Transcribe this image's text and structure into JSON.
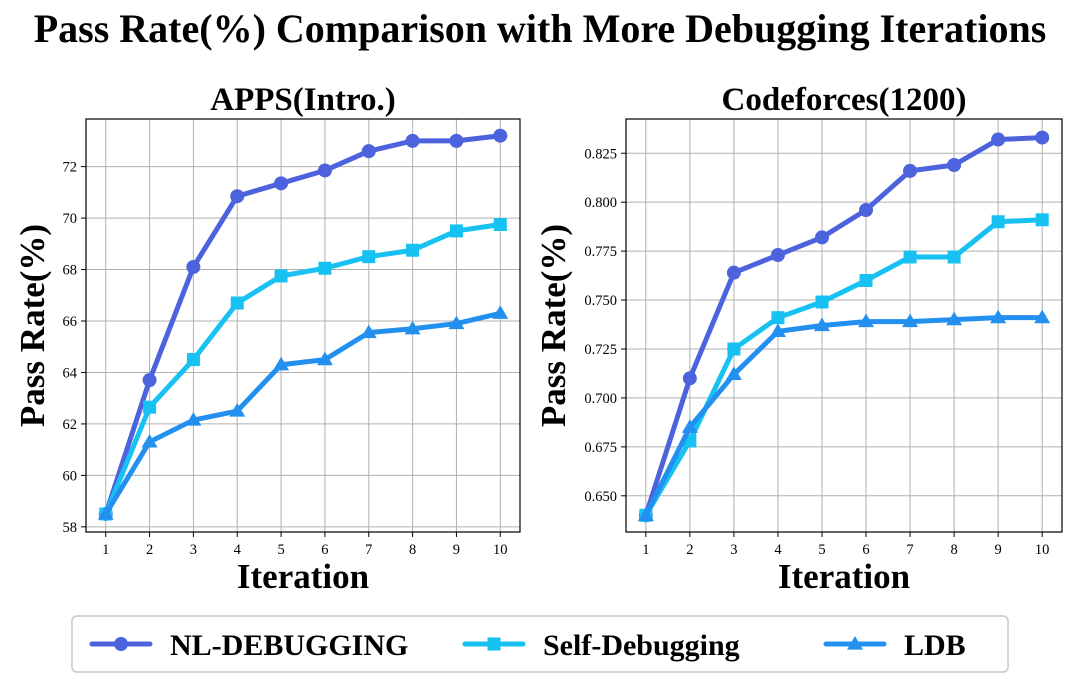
{
  "figure": {
    "title": "Pass Rate(%) Comparison with More Debugging Iterations"
  },
  "legend": {
    "placement": "bottom-center",
    "entries": [
      {
        "label": "NL-DEBUGGING",
        "color": "#4c63dd",
        "marker": "circle"
      },
      {
        "label": "Self-Debugging",
        "color": "#17c1f2",
        "marker": "square"
      },
      {
        "label": "LDB",
        "color": "#2390ef",
        "marker": "triangle"
      }
    ]
  },
  "chart_data": [
    {
      "type": "line",
      "title": "APPS(Intro.)",
      "xlabel": "Iteration",
      "ylabel": "Pass Rate(%)",
      "x": [
        1,
        2,
        3,
        4,
        5,
        6,
        7,
        8,
        9,
        10
      ],
      "xticks": [
        "1",
        "2",
        "3",
        "4",
        "5",
        "6",
        "7",
        "8",
        "9",
        "10"
      ],
      "yticks": [
        58,
        60,
        62,
        64,
        66,
        68,
        70,
        72
      ],
      "ytick_labels": [
        "58",
        "60",
        "62",
        "64",
        "66",
        "68",
        "70",
        "72"
      ],
      "xlim": [
        0.55,
        10.45
      ],
      "ylim": [
        57.8,
        73.85
      ],
      "grid": true,
      "series": [
        {
          "name": "NL-DEBUGGING",
          "values": [
            58.5,
            63.7,
            68.1,
            70.85,
            71.35,
            71.85,
            72.6,
            73.0,
            73.0,
            73.2
          ]
        },
        {
          "name": "Self-Debugging",
          "values": [
            58.5,
            62.65,
            64.5,
            66.7,
            67.75,
            68.05,
            68.5,
            68.75,
            69.5,
            69.75
          ]
        },
        {
          "name": "LDB",
          "values": [
            58.5,
            61.3,
            62.15,
            62.5,
            64.3,
            64.5,
            65.55,
            65.7,
            65.9,
            66.3
          ]
        }
      ]
    },
    {
      "type": "line",
      "title": "Codeforces(1200)",
      "xlabel": "Iteration",
      "ylabel": "Pass Rate(%)",
      "x": [
        1,
        2,
        3,
        4,
        5,
        6,
        7,
        8,
        9,
        10
      ],
      "xticks": [
        "1",
        "2",
        "3",
        "4",
        "5",
        "6",
        "7",
        "8",
        "9",
        "10"
      ],
      "yticks": [
        0.65,
        0.675,
        0.7,
        0.725,
        0.75,
        0.775,
        0.8,
        0.825
      ],
      "ytick_labels": [
        "0.650",
        "0.675",
        "0.700",
        "0.725",
        "0.750",
        "0.775",
        "0.800",
        "0.825"
      ],
      "xlim": [
        0.55,
        10.45
      ],
      "ylim": [
        0.6315,
        0.8425
      ],
      "grid": true,
      "series": [
        {
          "name": "NL-DEBUGGING",
          "values": [
            0.64,
            0.71,
            0.764,
            0.773,
            0.782,
            0.796,
            0.816,
            0.819,
            0.832,
            0.833
          ]
        },
        {
          "name": "Self-Debugging",
          "values": [
            0.64,
            0.678,
            0.725,
            0.741,
            0.749,
            0.76,
            0.772,
            0.772,
            0.79,
            0.791
          ]
        },
        {
          "name": "LDB",
          "values": [
            0.64,
            0.685,
            0.712,
            0.734,
            0.737,
            0.739,
            0.739,
            0.74,
            0.741,
            0.741
          ]
        }
      ]
    }
  ]
}
